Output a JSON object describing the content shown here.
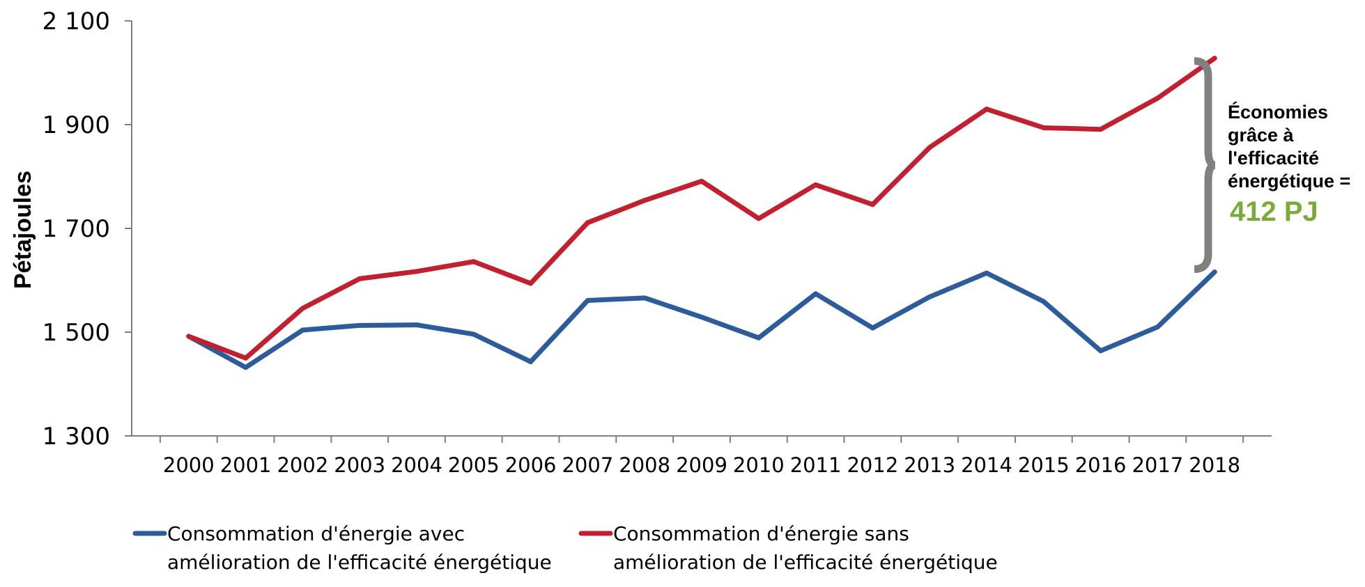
{
  "chart_data": {
    "type": "line",
    "title": "",
    "xlabel": "",
    "ylabel": "Pétajoules",
    "ylim": [
      1300,
      2100
    ],
    "yticks": [
      1300,
      1500,
      1700,
      1900,
      2100
    ],
    "ytick_labels": [
      "1 300",
      "1 500",
      "1 700",
      "1 900",
      "2 100"
    ],
    "grid": false,
    "legend_position": "bottom",
    "categories": [
      "2000",
      "2001",
      "2002",
      "2003",
      "2004",
      "2005",
      "2006",
      "2007",
      "2008",
      "2009",
      "2010",
      "2011",
      "2012",
      "2013",
      "2014",
      "2015",
      "2016",
      "2017",
      "2018"
    ],
    "series": [
      {
        "name": "Consommation d'énergie avec amélioration de l'efficacité énergétique",
        "name_lines": [
          "Consommation d'énergie avec",
          "amélioration de l'efficacité énergétique"
        ],
        "color": "#2E5C9A",
        "values": [
          1492,
          1432,
          1504,
          1513,
          1514,
          1496,
          1443,
          1561,
          1566,
          1529,
          1489,
          1574,
          1508,
          1568,
          1614,
          1559,
          1464,
          1510,
          1616
        ]
      },
      {
        "name": "Consommation d'énergie sans amélioration de l'efficacité énergétique",
        "name_lines": [
          "Consommation d'énergie sans",
          "amélioration de l'efficacité énergétique"
        ],
        "color": "#C0202F",
        "values": [
          1492,
          1450,
          1546,
          1603,
          1617,
          1636,
          1594,
          1711,
          1754,
          1791,
          1719,
          1784,
          1746,
          1856,
          1930,
          1894,
          1891,
          1951,
          2028
        ]
      }
    ],
    "annotation": {
      "lines": [
        "Économies",
        "grâce à",
        "l'efficacité",
        "énergétique ="
      ],
      "value": "412 PJ",
      "value_color": "#7AAA3C",
      "brace_color": "#808080"
    }
  }
}
